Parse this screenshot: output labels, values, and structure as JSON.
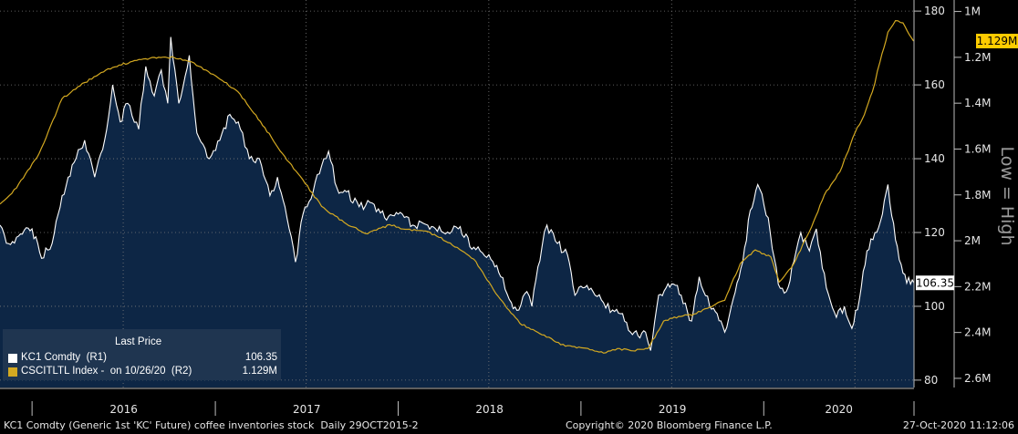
{
  "chart_data": {
    "type": "line",
    "x_axis": {
      "start": "2015-10-29",
      "end": "2020-10-27",
      "labels": [
        "2016",
        "2017",
        "2018",
        "2019",
        "2020"
      ]
    },
    "y_axis_left_price": {
      "range": [
        78,
        183
      ],
      "ticks": [
        80,
        100,
        120,
        140,
        160,
        180
      ]
    },
    "y_axis_right_inventory": {
      "inverted": true,
      "range_millions": [
        0.95,
        2.64
      ],
      "tick_labels": [
        "1M",
        "1.2M",
        "1.4M",
        "1.6M",
        "1.8M",
        "2M",
        "2.2M",
        "2.4M",
        "2.6M"
      ],
      "side_label": "Low = High"
    },
    "series": [
      {
        "name": "KC1 Comdty",
        "axis": "R1",
        "color": "#ffffff",
        "fill": "#0d2645",
        "last_value": "106.35",
        "points": [
          [
            "2015-10-29",
            122
          ],
          [
            "2015-11-15",
            117
          ],
          [
            "2015-12-05",
            119
          ],
          [
            "2016-01-01",
            121
          ],
          [
            "2016-01-20",
            113
          ],
          [
            "2016-02-10",
            117
          ],
          [
            "2016-03-01",
            130
          ],
          [
            "2016-03-25",
            139
          ],
          [
            "2016-04-15",
            145
          ],
          [
            "2016-05-05",
            135
          ],
          [
            "2016-05-25",
            145
          ],
          [
            "2016-06-10",
            160
          ],
          [
            "2016-06-25",
            150
          ],
          [
            "2016-07-10",
            155
          ],
          [
            "2016-08-01",
            148
          ],
          [
            "2016-08-15",
            165
          ],
          [
            "2016-09-01",
            157
          ],
          [
            "2016-09-15",
            164
          ],
          [
            "2016-09-28",
            155
          ],
          [
            "2016-10-04",
            173
          ],
          [
            "2016-10-20",
            155
          ],
          [
            "2016-11-10",
            168
          ],
          [
            "2016-11-25",
            147
          ],
          [
            "2016-12-20",
            140
          ],
          [
            "2017-01-10",
            145
          ],
          [
            "2017-01-30",
            152
          ],
          [
            "2017-02-20",
            148
          ],
          [
            "2017-03-10",
            140
          ],
          [
            "2017-03-30",
            140
          ],
          [
            "2017-04-20",
            130
          ],
          [
            "2017-05-05",
            135
          ],
          [
            "2017-05-20",
            127
          ],
          [
            "2017-06-10",
            112
          ],
          [
            "2017-06-25",
            125
          ],
          [
            "2017-07-15",
            131
          ],
          [
            "2017-08-01",
            138
          ],
          [
            "2017-08-15",
            142
          ],
          [
            "2017-09-01",
            132
          ],
          [
            "2017-09-20",
            131
          ],
          [
            "2017-10-15",
            127
          ],
          [
            "2017-11-10",
            128
          ],
          [
            "2017-12-05",
            124
          ],
          [
            "2018-01-01",
            125
          ],
          [
            "2018-01-30",
            122
          ],
          [
            "2018-03-01",
            122
          ],
          [
            "2018-04-01",
            120
          ],
          [
            "2018-05-01",
            121
          ],
          [
            "2018-06-01",
            116
          ],
          [
            "2018-07-01",
            114
          ],
          [
            "2018-07-25",
            108
          ],
          [
            "2018-08-15",
            101
          ],
          [
            "2018-08-30",
            99
          ],
          [
            "2018-09-15",
            104
          ],
          [
            "2018-09-25",
            100
          ],
          [
            "2018-10-15",
            116
          ],
          [
            "2018-10-25",
            122
          ],
          [
            "2018-11-15",
            117
          ],
          [
            "2018-12-05",
            114
          ],
          [
            "2018-12-20",
            103
          ],
          [
            "2019-01-05",
            105
          ],
          [
            "2019-01-25",
            104
          ],
          [
            "2019-02-15",
            101
          ],
          [
            "2019-03-05",
            99
          ],
          [
            "2019-03-25",
            98
          ],
          [
            "2019-04-10",
            93
          ],
          [
            "2019-04-25",
            92
          ],
          [
            "2019-05-10",
            93
          ],
          [
            "2019-05-20",
            88
          ],
          [
            "2019-06-05",
            103
          ],
          [
            "2019-06-20",
            105
          ],
          [
            "2019-07-05",
            106
          ],
          [
            "2019-07-20",
            103
          ],
          [
            "2019-08-10",
            96
          ],
          [
            "2019-08-25",
            108
          ],
          [
            "2019-09-15",
            100
          ],
          [
            "2019-09-30",
            98
          ],
          [
            "2019-10-15",
            93
          ],
          [
            "2019-11-01",
            102
          ],
          [
            "2019-11-20",
            112
          ],
          [
            "2019-12-05",
            126
          ],
          [
            "2019-12-20",
            133
          ],
          [
            "2020-01-10",
            124
          ],
          [
            "2020-01-30",
            106
          ],
          [
            "2020-02-15",
            104
          ],
          [
            "2020-03-01",
            112
          ],
          [
            "2020-03-15",
            120
          ],
          [
            "2020-04-01",
            115
          ],
          [
            "2020-04-15",
            121
          ],
          [
            "2020-05-05",
            105
          ],
          [
            "2020-05-25",
            97
          ],
          [
            "2020-06-10",
            100
          ],
          [
            "2020-06-25",
            94
          ],
          [
            "2020-07-10",
            102
          ],
          [
            "2020-07-25",
            115
          ],
          [
            "2020-08-10",
            120
          ],
          [
            "2020-08-25",
            125
          ],
          [
            "2020-09-05",
            133
          ],
          [
            "2020-09-20",
            118
          ],
          [
            "2020-10-05",
            109
          ],
          [
            "2020-10-20",
            106
          ],
          [
            "2020-10-27",
            106.35
          ]
        ]
      },
      {
        "name": "CSCITLTL Index",
        "axis": "R2",
        "color": "#d4a921",
        "last_value": "1.129M",
        "points_millions": [
          [
            "2015-10-29",
            1.84
          ],
          [
            "2015-12-01",
            1.77
          ],
          [
            "2016-01-15",
            1.62
          ],
          [
            "2016-03-01",
            1.38
          ],
          [
            "2016-04-15",
            1.31
          ],
          [
            "2016-06-01",
            1.25
          ],
          [
            "2016-07-15",
            1.22
          ],
          [
            "2016-09-01",
            1.2
          ],
          [
            "2016-10-10",
            1.2
          ],
          [
            "2016-11-15",
            1.22
          ],
          [
            "2017-01-01",
            1.28
          ],
          [
            "2017-02-15",
            1.35
          ],
          [
            "2017-04-01",
            1.48
          ],
          [
            "2017-05-15",
            1.62
          ],
          [
            "2017-06-20",
            1.72
          ],
          [
            "2017-08-01",
            1.85
          ],
          [
            "2017-09-15",
            1.92
          ],
          [
            "2017-11-01",
            1.97
          ],
          [
            "2017-12-15",
            1.93
          ],
          [
            "2018-01-15",
            1.95
          ],
          [
            "2018-03-01",
            1.96
          ],
          [
            "2018-04-15",
            2.01
          ],
          [
            "2018-06-01",
            2.08
          ],
          [
            "2018-07-15",
            2.23
          ],
          [
            "2018-09-01",
            2.36
          ],
          [
            "2018-10-15",
            2.41
          ],
          [
            "2018-12-01",
            2.46
          ],
          [
            "2019-01-15",
            2.47
          ],
          [
            "2019-02-15",
            2.49
          ],
          [
            "2019-03-15",
            2.47
          ],
          [
            "2019-04-15",
            2.48
          ],
          [
            "2019-05-15",
            2.47
          ],
          [
            "2019-06-15",
            2.35
          ],
          [
            "2019-07-15",
            2.33
          ],
          [
            "2019-08-15",
            2.32
          ],
          [
            "2019-09-15",
            2.29
          ],
          [
            "2019-10-15",
            2.26
          ],
          [
            "2019-11-15",
            2.1
          ],
          [
            "2019-12-15",
            2.04
          ],
          [
            "2020-01-15",
            2.07
          ],
          [
            "2020-02-01",
            2.18
          ],
          [
            "2020-03-01",
            2.1
          ],
          [
            "2020-04-01",
            1.96
          ],
          [
            "2020-05-01",
            1.8
          ],
          [
            "2020-06-01",
            1.7
          ],
          [
            "2020-07-01",
            1.53
          ],
          [
            "2020-07-20",
            1.45
          ],
          [
            "2020-08-05",
            1.35
          ],
          [
            "2020-08-20",
            1.22
          ],
          [
            "2020-09-05",
            1.09
          ],
          [
            "2020-09-20",
            1.04
          ],
          [
            "2020-10-05",
            1.05
          ],
          [
            "2020-10-26",
            1.129
          ]
        ]
      }
    ],
    "legend": {
      "title": "Last Price",
      "rows": [
        {
          "label": "KC1 Comdty  (R1)",
          "value": "106.35",
          "color": "#ffffff"
        },
        {
          "label": "CSCITLTL Index -  on 10/26/20  (R2)",
          "value": "1.129M",
          "color": "#d4a921"
        }
      ]
    }
  },
  "footer": {
    "left": "KC1 Comdty (Generic 1st 'KC' Future) coffee inventories stock  Daily 29OCT2015-2",
    "center": "Copyright© 2020 Bloomberg Finance L.P.",
    "right": "27-Oct-2020 11:12:06"
  },
  "colors": {
    "background": "#000000",
    "plot_fill": "#0d2645",
    "grid": "#7a7a7a",
    "inventory_line": "#d4a921",
    "badge_yellow": "#ffcc00"
  }
}
